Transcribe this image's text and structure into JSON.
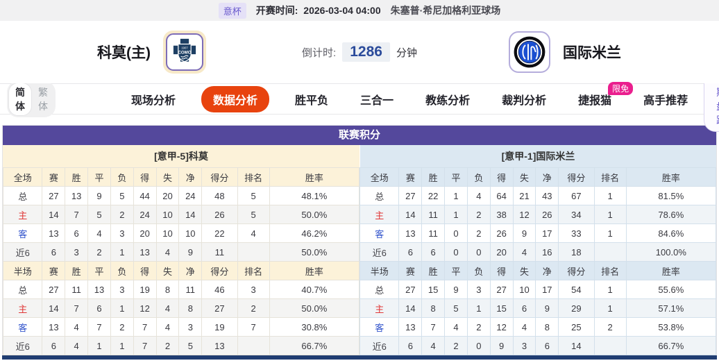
{
  "colors": {
    "header_purple": "#54489c",
    "active_tab_orange": "#e8430e",
    "badge_pink": "#ea1f8e",
    "link_purple": "#6a5acd",
    "countdown_blue": "#2b4b9b",
    "home_header_cream": "#fcf2d9",
    "away_header_blue": "#dce8f2",
    "home_label_red": "#e03636",
    "away_label_blue": "#3355cc",
    "bottom_bar_navy": "#203d72"
  },
  "top_bar": {
    "league_badge": "意杯",
    "kickoff_label": "开赛时间:",
    "kickoff_time": "2026-03-04 04:00",
    "venue": "朱塞普·希尼加格利亚球场"
  },
  "match_header": {
    "home_team_name": "科莫(主)",
    "home_logo_year": "1907",
    "home_logo_text": "COMO",
    "countdown_label": "倒计时:",
    "countdown_value": "1286",
    "countdown_unit": "分钟",
    "away_team_name": "国际米兰"
  },
  "tab_bar": {
    "lang": {
      "simplified": "简体",
      "traditional": "繁体"
    },
    "tabs": [
      {
        "label": "现场分析",
        "active": false
      },
      {
        "label": "数据分析",
        "active": true
      },
      {
        "label": "胜平负",
        "active": false
      },
      {
        "label": "三合一",
        "active": false
      },
      {
        "label": "教练分析",
        "active": false
      },
      {
        "label": "裁判分析",
        "active": false
      },
      {
        "label": "捷报猫",
        "active": false,
        "badge": "限免"
      },
      {
        "label": "高手推荐",
        "active": false
      }
    ],
    "recent_odds_button": "近期盘路"
  },
  "league_table": {
    "title": "联赛积分",
    "teams": [
      {
        "id": "home",
        "subtitle": "[意甲-5]科莫",
        "sections": [
          {
            "columns": [
              "全场",
              "赛",
              "胜",
              "平",
              "负",
              "得",
              "失",
              "净",
              "得分",
              "排名",
              "胜率"
            ],
            "rows": [
              {
                "label": "总",
                "type": "total",
                "values": [
                  "27",
                  "13",
                  "9",
                  "5",
                  "44",
                  "20",
                  "24",
                  "48",
                  "5",
                  "48.1%"
                ]
              },
              {
                "label": "主",
                "type": "home",
                "values": [
                  "14",
                  "7",
                  "5",
                  "2",
                  "24",
                  "10",
                  "14",
                  "26",
                  "5",
                  "50.0%"
                ]
              },
              {
                "label": "客",
                "type": "away",
                "values": [
                  "13",
                  "6",
                  "4",
                  "3",
                  "20",
                  "10",
                  "10",
                  "22",
                  "4",
                  "46.2%"
                ]
              },
              {
                "label": "近6",
                "type": "recent",
                "values": [
                  "6",
                  "3",
                  "2",
                  "1",
                  "13",
                  "4",
                  "9",
                  "11",
                  "",
                  "50.0%"
                ]
              }
            ]
          },
          {
            "columns": [
              "半场",
              "赛",
              "胜",
              "平",
              "负",
              "得",
              "失",
              "净",
              "得分",
              "排名",
              "胜率"
            ],
            "rows": [
              {
                "label": "总",
                "type": "total",
                "values": [
                  "27",
                  "11",
                  "13",
                  "3",
                  "19",
                  "8",
                  "11",
                  "46",
                  "3",
                  "40.7%"
                ]
              },
              {
                "label": "主",
                "type": "home",
                "values": [
                  "14",
                  "7",
                  "6",
                  "1",
                  "12",
                  "4",
                  "8",
                  "27",
                  "2",
                  "50.0%"
                ]
              },
              {
                "label": "客",
                "type": "away",
                "values": [
                  "13",
                  "4",
                  "7",
                  "2",
                  "7",
                  "4",
                  "3",
                  "19",
                  "7",
                  "30.8%"
                ]
              },
              {
                "label": "近6",
                "type": "recent",
                "values": [
                  "6",
                  "4",
                  "1",
                  "1",
                  "7",
                  "2",
                  "5",
                  "13",
                  "",
                  "66.7%"
                ]
              }
            ]
          }
        ]
      },
      {
        "id": "away",
        "subtitle": "[意甲-1]国际米兰",
        "sections": [
          {
            "columns": [
              "全场",
              "赛",
              "胜",
              "平",
              "负",
              "得",
              "失",
              "净",
              "得分",
              "排名",
              "胜率"
            ],
            "rows": [
              {
                "label": "总",
                "type": "total",
                "values": [
                  "27",
                  "22",
                  "1",
                  "4",
                  "64",
                  "21",
                  "43",
                  "67",
                  "1",
                  "81.5%"
                ]
              },
              {
                "label": "主",
                "type": "home",
                "values": [
                  "14",
                  "11",
                  "1",
                  "2",
                  "38",
                  "12",
                  "26",
                  "34",
                  "1",
                  "78.6%"
                ]
              },
              {
                "label": "客",
                "type": "away",
                "values": [
                  "13",
                  "11",
                  "0",
                  "2",
                  "26",
                  "9",
                  "17",
                  "33",
                  "1",
                  "84.6%"
                ]
              },
              {
                "label": "近6",
                "type": "recent",
                "values": [
                  "6",
                  "6",
                  "0",
                  "0",
                  "20",
                  "4",
                  "16",
                  "18",
                  "",
                  "100.0%"
                ]
              }
            ]
          },
          {
            "columns": [
              "半场",
              "赛",
              "胜",
              "平",
              "负",
              "得",
              "失",
              "净",
              "得分",
              "排名",
              "胜率"
            ],
            "rows": [
              {
                "label": "总",
                "type": "total",
                "values": [
                  "27",
                  "15",
                  "9",
                  "3",
                  "27",
                  "10",
                  "17",
                  "54",
                  "1",
                  "55.6%"
                ]
              },
              {
                "label": "主",
                "type": "home",
                "values": [
                  "14",
                  "8",
                  "5",
                  "1",
                  "15",
                  "6",
                  "9",
                  "29",
                  "1",
                  "57.1%"
                ]
              },
              {
                "label": "客",
                "type": "away",
                "values": [
                  "13",
                  "7",
                  "4",
                  "2",
                  "12",
                  "4",
                  "8",
                  "25",
                  "2",
                  "53.8%"
                ]
              },
              {
                "label": "近6",
                "type": "recent",
                "values": [
                  "6",
                  "4",
                  "2",
                  "0",
                  "9",
                  "3",
                  "6",
                  "14",
                  "",
                  "66.7%"
                ]
              }
            ]
          }
        ]
      }
    ]
  }
}
